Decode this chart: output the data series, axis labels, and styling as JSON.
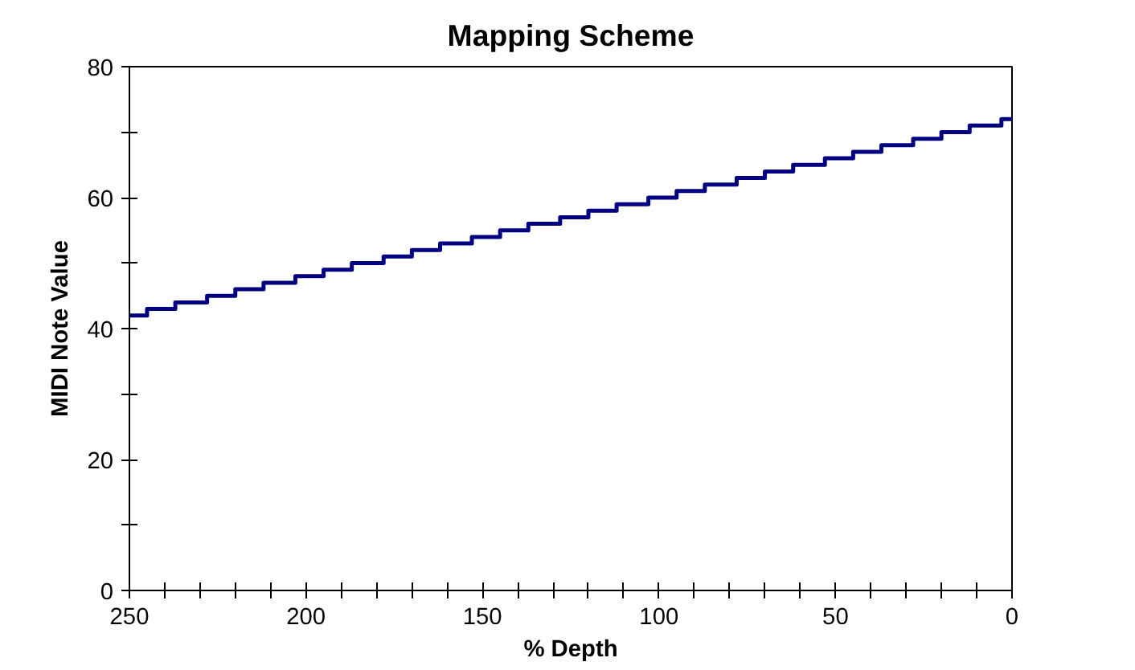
{
  "chart_data": {
    "type": "step",
    "title": "Mapping Scheme",
    "xlabel": "% Depth",
    "ylabel": "MIDI Note Value",
    "x": [
      250,
      245,
      237,
      228,
      220,
      212,
      203,
      195,
      187,
      178,
      170,
      162,
      153,
      145,
      137,
      128,
      120,
      112,
      103,
      95,
      87,
      78,
      70,
      62,
      53,
      45,
      37,
      28,
      20,
      12,
      3,
      0
    ],
    "series": [
      {
        "color": "#000080",
        "values": [
          42,
          43,
          44,
          45,
          46,
          47,
          48,
          49,
          50,
          51,
          52,
          53,
          54,
          55,
          56,
          57,
          58,
          59,
          60,
          61,
          62,
          63,
          64,
          65,
          66,
          67,
          68,
          69,
          70,
          71,
          72,
          72
        ]
      }
    ],
    "xlim": [
      250,
      0
    ],
    "ylim": [
      0,
      80
    ],
    "xticks": [
      250,
      {
        "value": 240,
        "label": null
      },
      {
        "value": 230,
        "label": null
      },
      {
        "value": 220,
        "label": null
      },
      {
        "value": 210,
        "label": null
      },
      200,
      {
        "value": 190,
        "label": null
      },
      {
        "value": 180,
        "label": null
      },
      {
        "value": 170,
        "label": null
      },
      {
        "value": 160,
        "label": null
      },
      150,
      {
        "value": 140,
        "label": null
      },
      {
        "value": 130,
        "label": null
      },
      {
        "value": 120,
        "label": null
      },
      {
        "value": 110,
        "label": null
      },
      100,
      {
        "value": 90,
        "label": null
      },
      {
        "value": 80,
        "label": null
      },
      {
        "value": 70,
        "label": null
      },
      {
        "value": 60,
        "label": null
      },
      50,
      {
        "value": 40,
        "label": null
      },
      {
        "value": 30,
        "label": null
      },
      {
        "value": 20,
        "label": null
      },
      {
        "value": 10,
        "label": null
      },
      0
    ],
    "yticks": [
      0,
      {
        "value": 10,
        "label": null
      },
      20,
      {
        "value": 30,
        "label": null
      },
      40,
      {
        "value": 50,
        "label": null
      },
      60,
      {
        "value": 70,
        "label": null
      },
      80
    ],
    "line_style": "solid"
  }
}
